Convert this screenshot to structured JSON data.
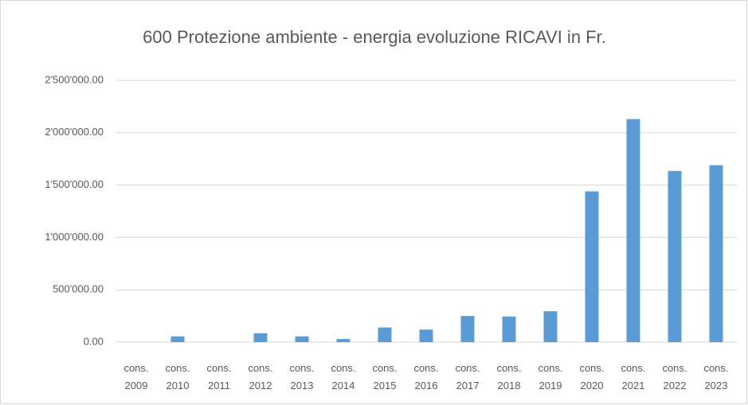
{
  "chart_data": {
    "type": "bar",
    "title": "600 Protezione ambiente - energia evoluzione RICAVI in Fr.",
    "categories": [
      "cons. 2009",
      "cons. 2010",
      "cons. 2011",
      "cons. 2012",
      "cons. 2013",
      "cons. 2014",
      "cons. 2015",
      "cons. 2016",
      "cons. 2017",
      "cons. 2018",
      "cons. 2019",
      "cons. 2020",
      "cons. 2021",
      "cons. 2022",
      "cons. 2023"
    ],
    "values": [
      0,
      55000,
      0,
      85000,
      55000,
      30000,
      140000,
      120000,
      250000,
      245000,
      295000,
      1440000,
      2130000,
      1635000,
      1690000
    ],
    "color": "#5b9bd5",
    "ylim": [
      0,
      2500000
    ],
    "yticks": [
      {
        "value": 0,
        "label": "0.00"
      },
      {
        "value": 500000,
        "label": "500'000.00"
      },
      {
        "value": 1000000,
        "label": "1'000'000.00"
      },
      {
        "value": 1500000,
        "label": "1'500'000.00"
      },
      {
        "value": 2000000,
        "label": "2'000'000.00"
      },
      {
        "value": 2500000,
        "label": "2'500'000.00"
      }
    ],
    "grid": true
  }
}
